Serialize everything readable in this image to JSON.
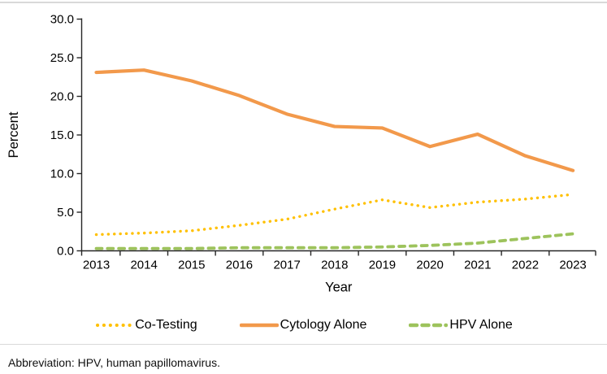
{
  "figure": {
    "note": "Abbreviation: HPV, human papillomavirus."
  },
  "legend": [
    {
      "label": "Co-Testing",
      "color": "#FFC000",
      "style": "dotted"
    },
    {
      "label": "Cytology Alone",
      "color": "#F2994B",
      "style": "solid"
    },
    {
      "label": "HPV Alone",
      "color": "#9DC35C",
      "style": "dashed"
    }
  ],
  "chart_data": {
    "type": "line",
    "title": "",
    "xlabel": "Year",
    "ylabel": "Percent",
    "categories": [
      "2013",
      "2014",
      "2015",
      "2016",
      "2017",
      "2018",
      "2019",
      "2020",
      "2021",
      "2022",
      "2023"
    ],
    "ylim": [
      0,
      30
    ],
    "ytick_step": 5,
    "ytick_labels": [
      "0.0",
      "5.0",
      "10.0",
      "15.0",
      "20.0",
      "25.0",
      "30.0"
    ],
    "grid": false,
    "legend_position": "bottom",
    "series": [
      {
        "name": "Co-Testing",
        "color": "#FFC000",
        "line_style": "dotted",
        "values": [
          2.1,
          2.3,
          2.6,
          3.3,
          4.1,
          5.4,
          6.6,
          5.6,
          6.3,
          6.7,
          7.3
        ]
      },
      {
        "name": "Cytology Alone",
        "color": "#F2994B",
        "line_style": "solid",
        "values": [
          23.1,
          23.4,
          22.0,
          20.1,
          17.7,
          16.1,
          15.9,
          13.5,
          15.1,
          12.3,
          10.4
        ]
      },
      {
        "name": "HPV Alone",
        "color": "#9DC35C",
        "line_style": "dashed",
        "values": [
          0.3,
          0.3,
          0.3,
          0.4,
          0.4,
          0.4,
          0.5,
          0.7,
          1.0,
          1.6,
          2.2
        ]
      }
    ]
  }
}
